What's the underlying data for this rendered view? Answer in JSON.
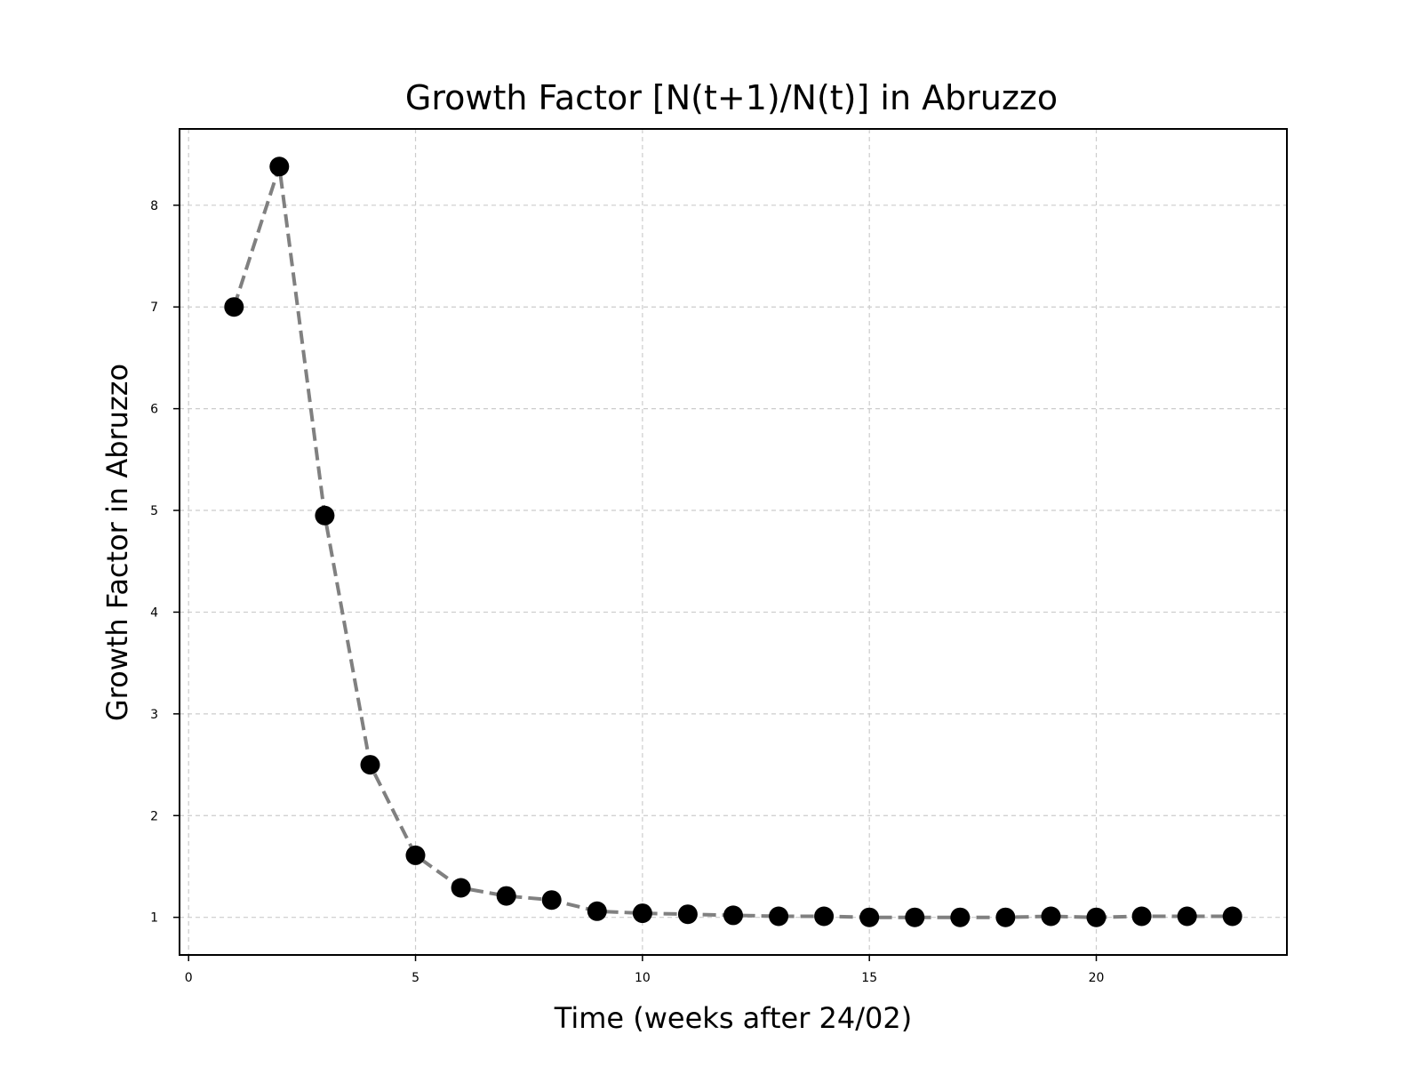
{
  "chart_data": {
    "type": "line",
    "title": "Growth Factor [N(t+1)/N(t)] in Abruzzo",
    "xlabel": "Time (weeks after 24/02)",
    "ylabel": "Growth Factor in Abruzzo",
    "xlim": [
      -0.2,
      24.2
    ],
    "ylim": [
      0.63,
      8.75
    ],
    "xticks": [
      0,
      5,
      10,
      15,
      20
    ],
    "yticks": [
      1,
      2,
      3,
      4,
      5,
      6,
      7,
      8
    ],
    "grid": true,
    "series": [
      {
        "line_style": "dashed",
        "line_color": "#808080",
        "marker_color": "#000000",
        "x": [
          1,
          2,
          3,
          4,
          5,
          6,
          7,
          8,
          9,
          10,
          11,
          12,
          13,
          14,
          15,
          16,
          17,
          18,
          19,
          20,
          21,
          22,
          23
        ],
        "y": [
          7.0,
          8.38,
          4.95,
          2.5,
          1.61,
          1.29,
          1.21,
          1.17,
          1.06,
          1.04,
          1.03,
          1.02,
          1.01,
          1.01,
          1.0,
          1.0,
          1.0,
          1.0,
          1.01,
          1.0,
          1.01,
          1.01,
          1.01
        ]
      }
    ]
  }
}
